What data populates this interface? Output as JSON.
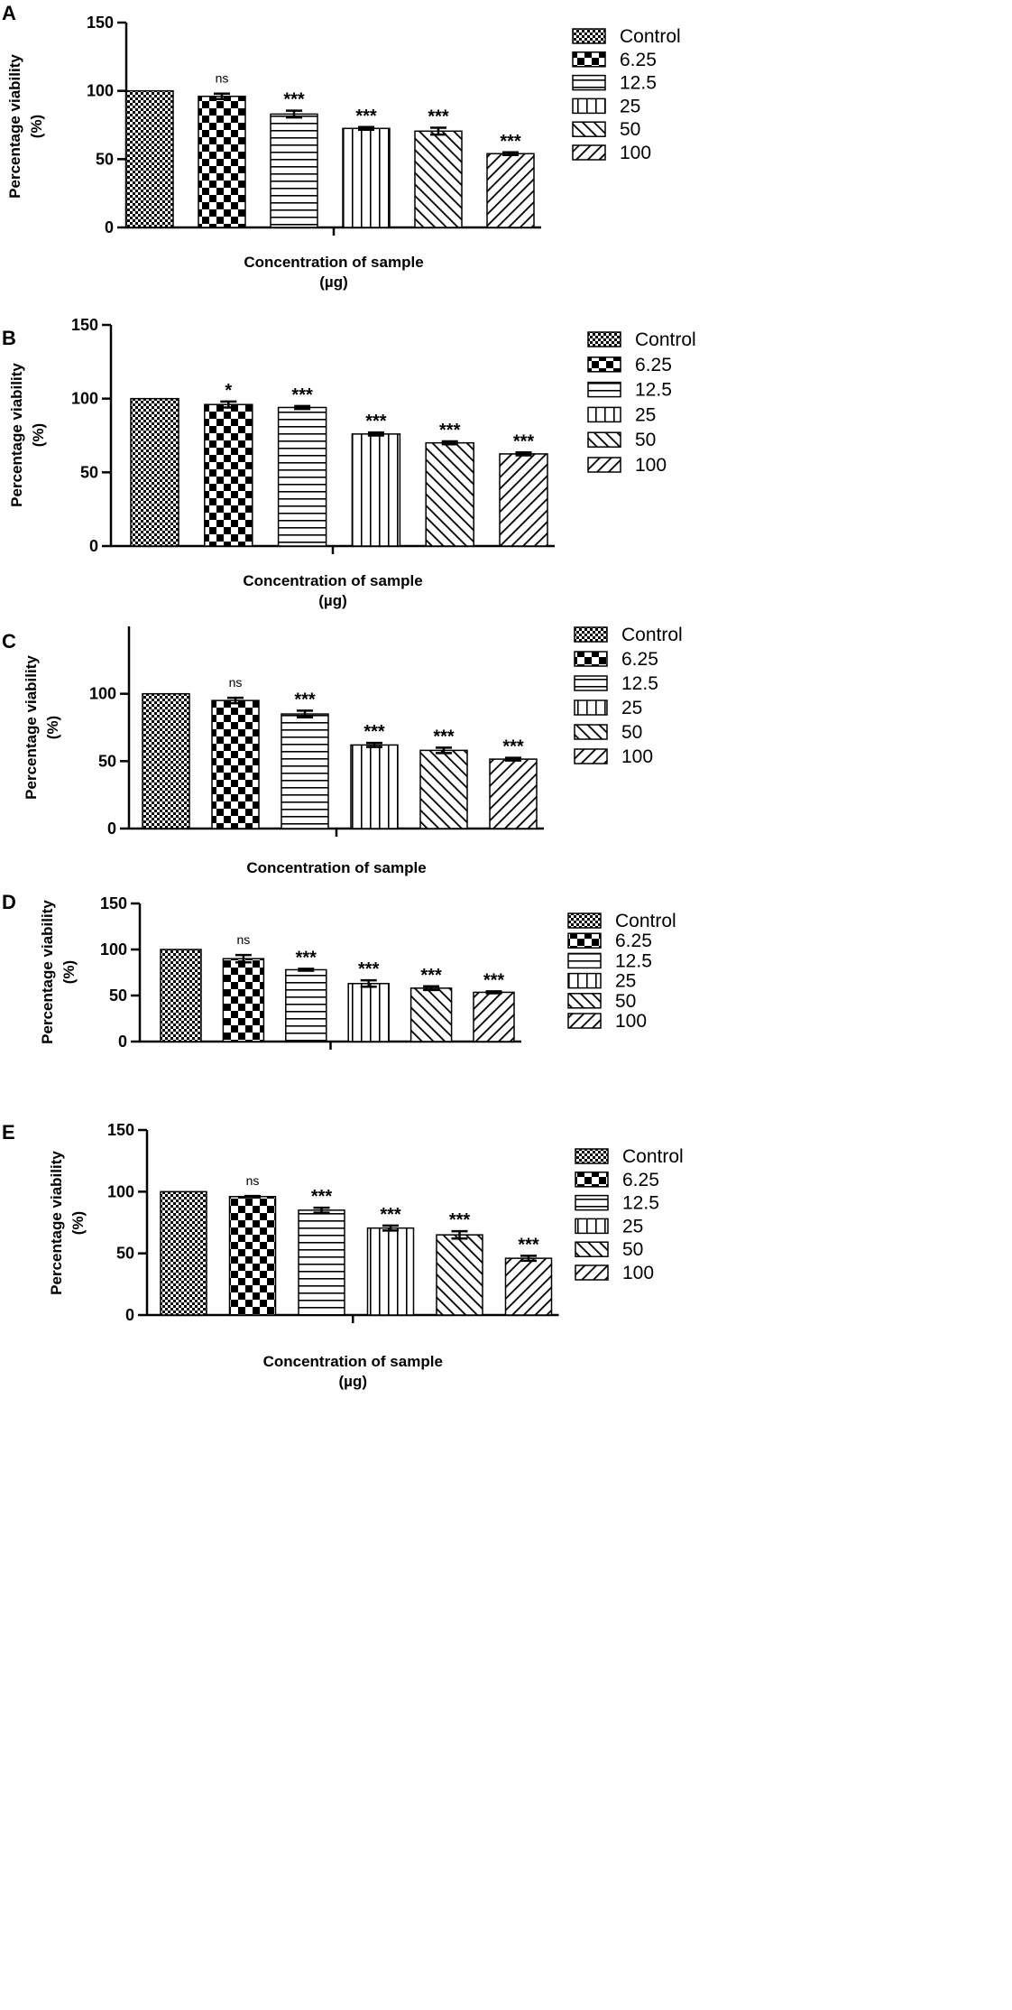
{
  "categories": [
    "Control",
    "6.25",
    "12.5",
    "25",
    "50",
    "100"
  ],
  "chart_data": [
    {
      "type": "bar",
      "panel": "A",
      "ylabel": "Percentage viability",
      "ylabel_unit": "(%)",
      "xlabel": "Concentration of sample",
      "xlabel_unit": "(µg)",
      "ylim": [
        0,
        150
      ],
      "yticks": [
        "0",
        "50",
        "100",
        "150"
      ],
      "categories": [
        "Control",
        "6.25",
        "12.5",
        "25",
        "50",
        "100"
      ],
      "values": [
        100,
        96,
        83,
        72.5,
        70.5,
        54
      ],
      "errors": [
        0,
        2,
        2.5,
        1,
        2.5,
        1
      ],
      "significance": [
        "",
        "ns",
        "***",
        "***",
        "***",
        "***"
      ]
    },
    {
      "type": "bar",
      "panel": "B",
      "ylabel": "Percentage viability",
      "ylabel_unit": "(%)",
      "xlabel": "Concentration of sample",
      "xlabel_unit": "(µg)",
      "ylim": [
        0,
        150
      ],
      "yticks": [
        "0",
        "50",
        "100",
        "150"
      ],
      "categories": [
        "Control",
        "6.25",
        "12.5",
        "25",
        "50",
        "100"
      ],
      "values": [
        100,
        96,
        94,
        76,
        70,
        62.5
      ],
      "errors": [
        0,
        2,
        1,
        1,
        1,
        1
      ],
      "significance": [
        "",
        "*",
        "***",
        "***",
        "***",
        "***"
      ]
    },
    {
      "type": "bar",
      "panel": "C",
      "ylabel": "Percentage viability",
      "ylabel_unit": "(%)",
      "xlabel": "Concentration of sample",
      "xlabel_unit": "",
      "ylim": [
        0,
        150
      ],
      "yticks": [
        "0",
        "50",
        "100"
      ],
      "categories": [
        "Control",
        "6.25",
        "12.5",
        "25",
        "50",
        "100"
      ],
      "values": [
        100,
        95,
        85,
        62,
        58,
        51.5
      ],
      "errors": [
        0,
        2,
        2.5,
        1.5,
        2,
        1
      ],
      "significance": [
        "",
        "ns",
        "***",
        "***",
        "***",
        "***"
      ]
    },
    {
      "type": "bar",
      "panel": "D",
      "ylabel": "Percentage viability",
      "ylabel_unit": "(%)",
      "xlabel": "",
      "xlabel_unit": "",
      "ylim": [
        0,
        150
      ],
      "yticks": [
        "0",
        "50",
        "100",
        "150"
      ],
      "categories": [
        "Control",
        "6.25",
        "12.5",
        "25",
        "50",
        "100"
      ],
      "values": [
        100,
        90,
        78,
        63,
        58,
        53.5
      ],
      "errors": [
        0,
        4,
        1,
        3.5,
        2,
        1
      ],
      "significance": [
        "",
        "ns",
        "***",
        "***",
        "***",
        "***"
      ]
    },
    {
      "type": "bar",
      "panel": "E",
      "ylabel": "Percentage viability",
      "ylabel_unit": "(%)",
      "xlabel": "Concentration of sample",
      "xlabel_unit": "(µg)",
      "ylim": [
        0,
        150
      ],
      "yticks": [
        "0",
        "50",
        "100",
        "150"
      ],
      "categories": [
        "Control",
        "6.25",
        "12.5",
        "25",
        "50",
        "100"
      ],
      "values": [
        100,
        96,
        85,
        70.5,
        65,
        46
      ],
      "errors": [
        0,
        0.5,
        2,
        2,
        3,
        2
      ],
      "significance": [
        "",
        "ns",
        "***",
        "***",
        "***",
        "***"
      ]
    }
  ]
}
